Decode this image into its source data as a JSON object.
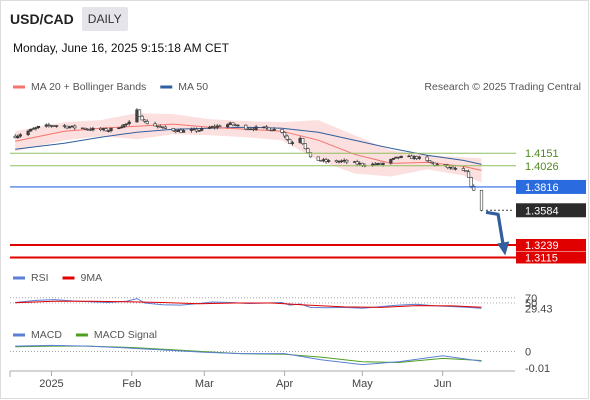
{
  "header": {
    "symbol": "USD/CAD",
    "period": "DAILY",
    "datetime": "Monday, June 16, 2025 9:15:18 AM CET"
  },
  "colors": {
    "ma20": "#f4736b",
    "ma50": "#2f5f9e",
    "bull": "#444444",
    "bear": "#ffffff",
    "band": "#fbd4d4",
    "support": "#e00000",
    "resistance": "#2a6be0",
    "green": "#8fbf60",
    "rsi": "#5b7fd6",
    "rsi_ma": "#e00000",
    "macd": "#5b7fd6",
    "macd_signal": "#4f9f1f"
  },
  "legend": {
    "main": [
      {
        "label": "MA 20 + Bollinger Bands",
        "color": "#f4736b"
      },
      {
        "label": "MA 50",
        "color": "#2f5f9e"
      }
    ],
    "copyright": "Research © 2025 Trading Central",
    "rsi": [
      {
        "label": "RSI",
        "color": "#5b7fd6"
      },
      {
        "label": "9MA",
        "color": "#e00000"
      }
    ],
    "macd": [
      {
        "label": "MACD",
        "color": "#5b7fd6"
      },
      {
        "label": "MACD Signal",
        "color": "#4f9f1f"
      }
    ]
  },
  "chart_data": {
    "type": "candlestick",
    "x_range": [
      "2024-12-16",
      "2025-06-27"
    ],
    "x_ticks": [
      {
        "date": "2025-01-01",
        "label": "2025"
      },
      {
        "date": "2025-02-01",
        "label": "Feb"
      },
      {
        "date": "2025-03-01",
        "label": "Mar"
      },
      {
        "date": "2025-04-01",
        "label": "Apr"
      },
      {
        "date": "2025-05-01",
        "label": "May"
      },
      {
        "date": "2025-06-01",
        "label": "Jun"
      }
    ],
    "y_range": [
      1.307,
      1.468
    ],
    "close_points": [
      [
        "2024-12-18",
        1.432
      ],
      [
        "2024-12-23",
        1.437
      ],
      [
        "2024-12-27",
        1.441
      ],
      [
        "2025-01-02",
        1.443
      ],
      [
        "2025-01-09",
        1.441
      ],
      [
        "2025-01-16",
        1.439
      ],
      [
        "2025-01-23",
        1.438
      ],
      [
        "2025-01-31",
        1.445
      ],
      [
        "2025-02-03",
        1.457
      ],
      [
        "2025-02-06",
        1.446
      ],
      [
        "2025-02-13",
        1.44
      ],
      [
        "2025-02-20",
        1.437
      ],
      [
        "2025-02-27",
        1.438
      ],
      [
        "2025-03-04",
        1.441
      ],
      [
        "2025-03-11",
        1.444
      ],
      [
        "2025-03-18",
        1.44
      ],
      [
        "2025-03-25",
        1.44
      ],
      [
        "2025-03-31",
        1.437
      ],
      [
        "2025-04-03",
        1.425
      ],
      [
        "2025-04-07",
        1.431
      ],
      [
        "2025-04-11",
        1.41
      ],
      [
        "2025-04-17",
        1.407
      ],
      [
        "2025-04-24",
        1.407
      ],
      [
        "2025-05-01",
        1.404
      ],
      [
        "2025-05-08",
        1.404
      ],
      [
        "2025-05-15",
        1.411
      ],
      [
        "2025-05-22",
        1.411
      ],
      [
        "2025-05-29",
        1.404
      ],
      [
        "2025-06-03",
        1.401
      ],
      [
        "2025-06-10",
        1.396
      ],
      [
        "2025-06-16",
        1.3584
      ]
    ],
    "ma20": [
      [
        "2024-12-18",
        1.427
      ],
      [
        "2025-01-06",
        1.437
      ],
      [
        "2025-01-20",
        1.44
      ],
      [
        "2025-02-03",
        1.442
      ],
      [
        "2025-02-17",
        1.444
      ],
      [
        "2025-03-03",
        1.441
      ],
      [
        "2025-03-17",
        1.439
      ],
      [
        "2025-03-31",
        1.437
      ],
      [
        "2025-04-14",
        1.428
      ],
      [
        "2025-04-28",
        1.414
      ],
      [
        "2025-05-12",
        1.405
      ],
      [
        "2025-05-26",
        1.406
      ],
      [
        "2025-06-09",
        1.402
      ],
      [
        "2025-06-16",
        1.398
      ]
    ],
    "bollinger_upper": [
      [
        "2024-12-18",
        1.437
      ],
      [
        "2025-01-06",
        1.446
      ],
      [
        "2025-01-20",
        1.448
      ],
      [
        "2025-02-03",
        1.455
      ],
      [
        "2025-02-17",
        1.454
      ],
      [
        "2025-03-03",
        1.449
      ],
      [
        "2025-03-17",
        1.447
      ],
      [
        "2025-03-31",
        1.446
      ],
      [
        "2025-04-14",
        1.448
      ],
      [
        "2025-04-28",
        1.433
      ],
      [
        "2025-05-12",
        1.418
      ],
      [
        "2025-05-26",
        1.413
      ],
      [
        "2025-06-09",
        1.411
      ],
      [
        "2025-06-16",
        1.41
      ]
    ],
    "bollinger_lower": [
      [
        "2024-12-18",
        1.417
      ],
      [
        "2025-01-06",
        1.428
      ],
      [
        "2025-01-20",
        1.432
      ],
      [
        "2025-02-03",
        1.429
      ],
      [
        "2025-02-17",
        1.434
      ],
      [
        "2025-03-03",
        1.433
      ],
      [
        "2025-03-17",
        1.431
      ],
      [
        "2025-03-31",
        1.428
      ],
      [
        "2025-04-14",
        1.408
      ],
      [
        "2025-04-28",
        1.395
      ],
      [
        "2025-05-12",
        1.392
      ],
      [
        "2025-05-26",
        1.399
      ],
      [
        "2025-06-09",
        1.393
      ],
      [
        "2025-06-16",
        1.386
      ]
    ],
    "ma50": [
      [
        "2024-12-18",
        1.419
      ],
      [
        "2025-01-06",
        1.425
      ],
      [
        "2025-01-20",
        1.431
      ],
      [
        "2025-02-03",
        1.436
      ],
      [
        "2025-02-17",
        1.439
      ],
      [
        "2025-03-03",
        1.44
      ],
      [
        "2025-03-17",
        1.441
      ],
      [
        "2025-03-31",
        1.44
      ],
      [
        "2025-04-14",
        1.436
      ],
      [
        "2025-04-28",
        1.428
      ],
      [
        "2025-05-12",
        1.42
      ],
      [
        "2025-05-26",
        1.413
      ],
      [
        "2025-06-09",
        1.408
      ],
      [
        "2025-06-16",
        1.404
      ]
    ],
    "price_levels": [
      {
        "value": 1.4151,
        "label": "1.4151",
        "kind": "green"
      },
      {
        "value": 1.4026,
        "label": "1.4026",
        "kind": "green"
      },
      {
        "value": 1.3816,
        "label": "1.3816",
        "kind": "resistance"
      },
      {
        "value": 1.3584,
        "label": "1.3584",
        "kind": "last"
      },
      {
        "value": 1.3239,
        "label": "1.3239",
        "kind": "support"
      },
      {
        "value": 1.3115,
        "label": "1.3115",
        "kind": "support"
      }
    ],
    "forecast_arrow": [
      [
        "2025-06-17",
        1.3584
      ],
      [
        "2025-06-24",
        1.3145
      ]
    ],
    "rsi": {
      "range": [
        0,
        100
      ],
      "levels": [
        {
          "value": 70,
          "label": "70"
        },
        {
          "value": 50,
          "label": "50"
        }
      ],
      "last_label": "29.43",
      "series": [
        [
          "2024-12-18",
          52
        ],
        [
          "2024-12-26",
          60
        ],
        [
          "2025-01-02",
          63
        ],
        [
          "2025-01-09",
          58
        ],
        [
          "2025-01-16",
          55
        ],
        [
          "2025-01-23",
          52
        ],
        [
          "2025-01-30",
          57
        ],
        [
          "2025-02-03",
          67
        ],
        [
          "2025-02-06",
          50
        ],
        [
          "2025-02-13",
          43
        ],
        [
          "2025-02-20",
          42
        ],
        [
          "2025-02-27",
          48
        ],
        [
          "2025-03-04",
          54
        ],
        [
          "2025-03-11",
          52
        ],
        [
          "2025-03-18",
          48
        ],
        [
          "2025-03-25",
          50
        ],
        [
          "2025-03-31",
          52
        ],
        [
          "2025-04-03",
          42
        ],
        [
          "2025-04-07",
          46
        ],
        [
          "2025-04-11",
          33
        ],
        [
          "2025-04-17",
          32
        ],
        [
          "2025-04-24",
          33
        ],
        [
          "2025-05-01",
          30
        ],
        [
          "2025-05-08",
          36
        ],
        [
          "2025-05-15",
          42
        ],
        [
          "2025-05-22",
          45
        ],
        [
          "2025-05-29",
          39
        ],
        [
          "2025-06-03",
          37
        ],
        [
          "2025-06-10",
          34
        ],
        [
          "2025-06-16",
          29.43
        ]
      ],
      "ma": [
        [
          "2024-12-18",
          51
        ],
        [
          "2025-01-02",
          57
        ],
        [
          "2025-01-16",
          57
        ],
        [
          "2025-01-30",
          55
        ],
        [
          "2025-02-13",
          52
        ],
        [
          "2025-02-27",
          47
        ],
        [
          "2025-03-13",
          50
        ],
        [
          "2025-03-27",
          50
        ],
        [
          "2025-04-10",
          42
        ],
        [
          "2025-04-24",
          35
        ],
        [
          "2025-05-08",
          33
        ],
        [
          "2025-05-22",
          40
        ],
        [
          "2025-06-05",
          39
        ],
        [
          "2025-06-16",
          34
        ]
      ]
    },
    "macd": {
      "zero_label": "0",
      "last_label": "-0.01",
      "range": [
        -0.012,
        0.007
      ],
      "series": [
        [
          "2024-12-18",
          0.004
        ],
        [
          "2025-01-01",
          0.0045
        ],
        [
          "2025-01-15",
          0.004
        ],
        [
          "2025-02-01",
          0.0025
        ],
        [
          "2025-02-15",
          0.001
        ],
        [
          "2025-03-01",
          -0.0005
        ],
        [
          "2025-03-15",
          -0.0015
        ],
        [
          "2025-04-01",
          -0.0015
        ],
        [
          "2025-04-15",
          -0.006
        ],
        [
          "2025-05-01",
          -0.0095
        ],
        [
          "2025-05-15",
          -0.0075
        ],
        [
          "2025-06-01",
          -0.003
        ],
        [
          "2025-06-16",
          -0.007
        ]
      ],
      "signal": [
        [
          "2024-12-18",
          0.0035
        ],
        [
          "2025-01-01",
          0.004
        ],
        [
          "2025-01-15",
          0.004
        ],
        [
          "2025-02-01",
          0.003
        ],
        [
          "2025-02-15",
          0.0015
        ],
        [
          "2025-03-01",
          0.0
        ],
        [
          "2025-03-15",
          -0.0015
        ],
        [
          "2025-04-01",
          -0.002
        ],
        [
          "2025-04-15",
          -0.004
        ],
        [
          "2025-05-01",
          -0.0075
        ],
        [
          "2025-05-15",
          -0.008
        ],
        [
          "2025-06-01",
          -0.005
        ],
        [
          "2025-06-16",
          -0.0065
        ]
      ]
    }
  }
}
